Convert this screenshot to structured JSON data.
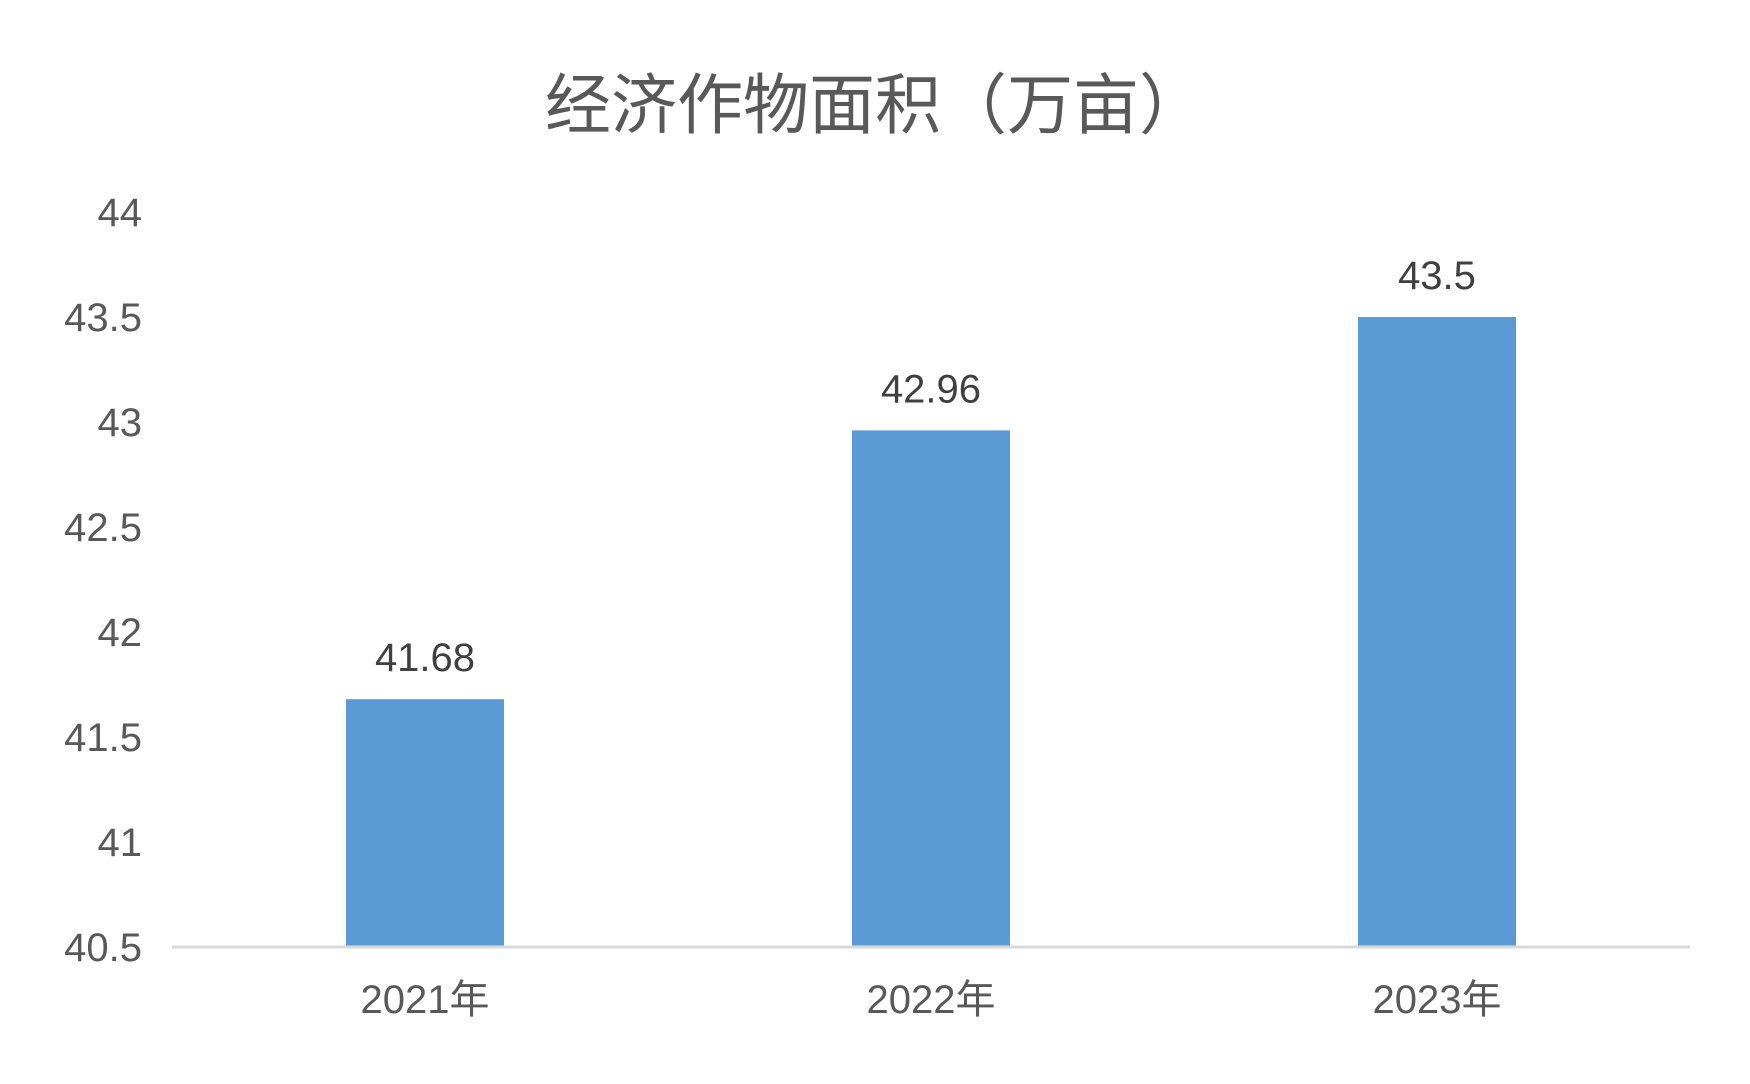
{
  "chart_data": {
    "type": "bar",
    "title": "经济作物面积（万亩）",
    "xlabel": "",
    "ylabel": "",
    "categories": [
      "2021年",
      "2022年",
      "2023年"
    ],
    "values": [
      41.68,
      42.96,
      43.5
    ],
    "data_labels": [
      "41.68",
      "42.96",
      "43.5"
    ],
    "ylim": [
      40.5,
      44
    ],
    "yticks": [
      40.5,
      41,
      41.5,
      42,
      42.5,
      43,
      43.5,
      44
    ],
    "ytick_labels": [
      "40.5",
      "41",
      "41.5",
      "42",
      "42.5",
      "43",
      "43.5",
      "44"
    ],
    "grid": false,
    "legend": "none",
    "colors": {
      "bar": "#5b9bd5",
      "axis": "#d9d9d9",
      "text": "#595959",
      "label": "#404040"
    }
  }
}
